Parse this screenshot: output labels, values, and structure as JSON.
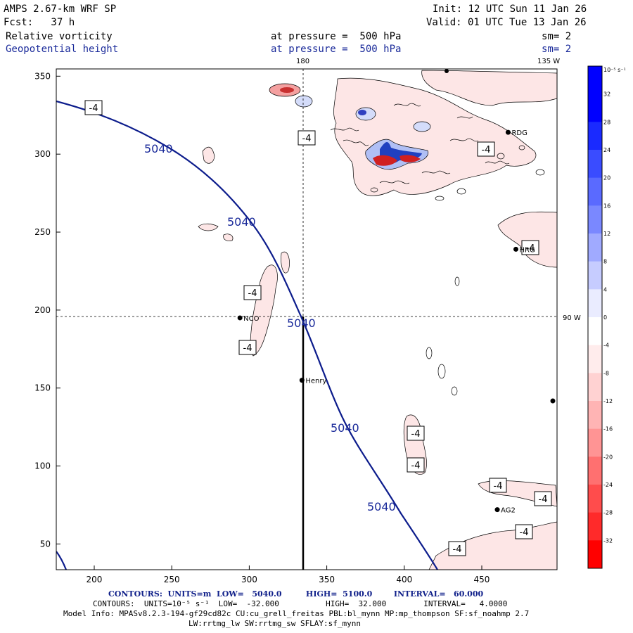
{
  "header": {
    "model": "AMPS 2.67-km WRF SP",
    "forecast": "Fcst:   37 h",
    "init": "Init: 12 UTC Sun 11 Jan 26",
    "valid": "Valid: 01 UTC Tue 13 Jan 26",
    "field1": {
      "name": "Relative vorticity",
      "level": "at pressure =  500 hPa",
      "smooth": "sm= 2"
    },
    "field2": {
      "name": "Geopotential height",
      "level": "at pressure =  500 hPa",
      "smooth": "sm= 2"
    }
  },
  "map": {
    "meridian_labels": {
      "m180": "180",
      "m135w": "135 W",
      "m90w": "90 W"
    },
    "x_ticks": [
      "200",
      "250",
      "300",
      "350",
      "400",
      "450"
    ],
    "y_ticks": [
      "50",
      "100",
      "150",
      "200",
      "250",
      "300",
      "350"
    ],
    "stations": [
      {
        "name": "RDG",
        "x": 467,
        "y": 314
      },
      {
        "name": "HRG",
        "x": 472,
        "y": 239
      },
      {
        "name": "NCO",
        "x": 294,
        "y": 195
      },
      {
        "name": "Henry",
        "x": 334,
        "y": 155
      },
      {
        "name": "AG2",
        "x": 460,
        "y": 72
      }
    ],
    "contour_label": "5040",
    "vort_label": "-4",
    "colors": {
      "height_contour": "#0c1c8c",
      "frame": "#000000",
      "vort_pos": "#0000ff",
      "vort_neg": "#ff0000"
    }
  },
  "colorbar": {
    "unit_label": "10⁻⁵ s⁻¹",
    "ticks": [
      "32",
      "28",
      "24",
      "20",
      "16",
      "12",
      "8",
      "4",
      "0",
      "-4",
      "-8",
      "-12",
      "-16",
      "-20",
      "-24",
      "-28",
      "-32"
    ]
  },
  "footer": {
    "line1": "CONTOURS:  UNITS=m  LOW=   5040.0         HIGH=  5100.0        INTERVAL=   60.000",
    "line2": "CONTOURS:  UNITS=10⁻⁵ s⁻¹  LOW=  -32.000          HIGH=  32.000        INTERVAL=   4.0000",
    "line3": "Model Info: MPASv8.2.3-194-gf29cd82c CU:cu_grell_freitas PBL:bl_mynn MP:mp_thompson SF:sf_noahmp 2.7",
    "line4": "LW:rrtmg_lw SW:rrtmg_sw SFLAY:sf_mynn"
  }
}
